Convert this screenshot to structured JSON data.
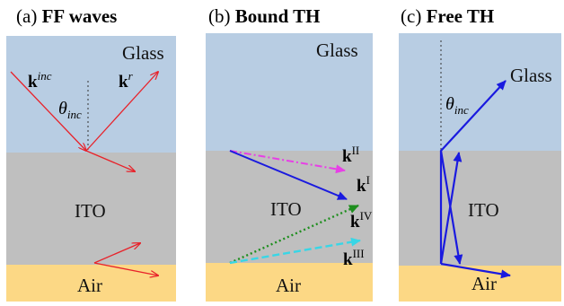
{
  "panels": [
    {
      "id": "a",
      "prefix": "(a) ",
      "title": "FF waves"
    },
    {
      "id": "b",
      "prefix": "(b) ",
      "title": "Bound TH"
    },
    {
      "id": "c",
      "prefix": "(c) ",
      "title": "Free TH"
    }
  ],
  "layers": {
    "top": "Glass",
    "middle": "ITO",
    "bottom": "Air"
  },
  "labels": {
    "k": "k",
    "inc": "inc",
    "r": "r",
    "theta": "θ",
    "kI": "I",
    "kII": "II",
    "kIII": "III",
    "kIV": "IV"
  },
  "colors": {
    "glass": "#b8cde3",
    "ito": "#bfbfbf",
    "air": "#fcd885",
    "ff_arrow": "#e8222a",
    "th_blue": "#1a1adf",
    "th_magenta": "#e73fe6",
    "th_green": "#1e8e1e",
    "th_cyan": "#38d6e6"
  }
}
